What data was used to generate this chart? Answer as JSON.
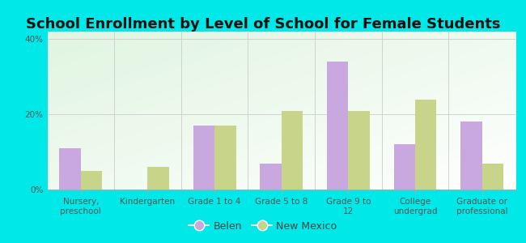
{
  "title": "School Enrollment by Level of School for Female Students",
  "categories": [
    "Nursery,\npreschool",
    "Kindergarten",
    "Grade 1 to 4",
    "Grade 5 to 8",
    "Grade 9 to\n12",
    "College\nundergrad",
    "Graduate or\nprofessional"
  ],
  "belen_values": [
    11,
    0,
    17,
    7,
    34,
    12,
    18
  ],
  "nm_values": [
    5,
    6,
    17,
    21,
    21,
    24,
    7
  ],
  "belen_color": "#c9a8e0",
  "nm_color": "#c8d48a",
  "background_color": "#00e8e8",
  "yticks": [
    0,
    20,
    40
  ],
  "ylim": [
    0,
    42
  ],
  "ylabel_labels": [
    "0%",
    "20%",
    "40%"
  ],
  "legend_belen": "Belen",
  "legend_nm": "New Mexico",
  "bar_width": 0.32,
  "title_fontsize": 13,
  "tick_fontsize": 7.5,
  "legend_fontsize": 9
}
